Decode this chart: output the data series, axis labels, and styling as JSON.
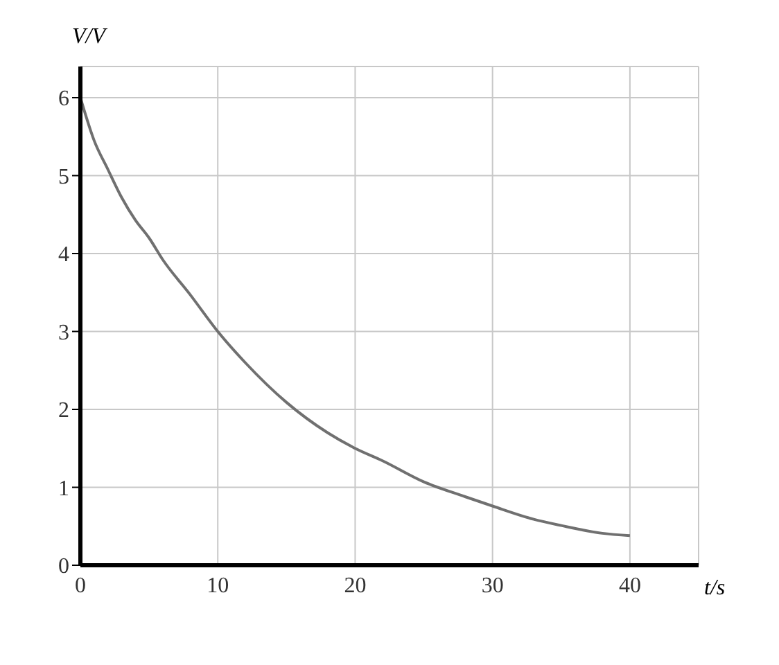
{
  "chart_data": {
    "type": "line",
    "xlabel": "t/s",
    "ylabel": "V/V",
    "x": [
      0,
      1,
      2,
      3,
      4,
      5,
      6,
      8,
      10,
      12,
      15,
      18,
      20,
      22,
      25,
      28,
      30,
      33,
      35,
      38,
      40
    ],
    "series": [
      {
        "color": "#707070",
        "values": [
          6.0,
          5.45,
          5.08,
          4.72,
          4.43,
          4.2,
          3.92,
          3.47,
          3.0,
          2.6,
          2.09,
          1.7,
          1.5,
          1.34,
          1.07,
          0.88,
          0.76,
          0.59,
          0.51,
          0.41,
          0.38
        ]
      }
    ],
    "xlim": [
      0,
      45
    ],
    "xticks": [
      0,
      10,
      20,
      30,
      40
    ],
    "ylim": [
      0,
      6.4
    ],
    "yticks": [
      0,
      1,
      2,
      3,
      4,
      5,
      6
    ],
    "grid": true,
    "marker": "none",
    "line_style": "solid"
  }
}
